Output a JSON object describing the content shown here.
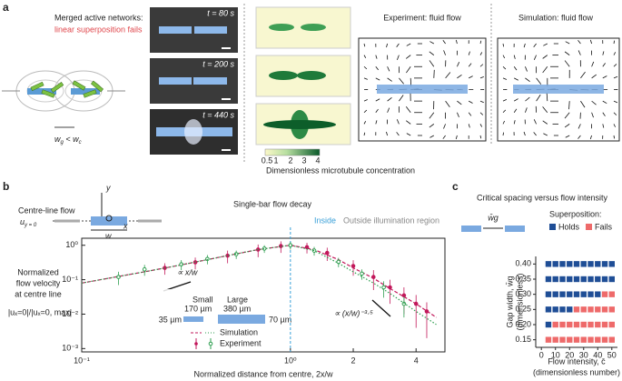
{
  "panel_a": {
    "letter": "a",
    "heading": "Merged active networks:",
    "subheading": "linear superposition fails",
    "gap_label": [
      "w",
      "g",
      " < ",
      "w",
      "c"
    ],
    "times": [
      "t = 80 s",
      "t = 200 s",
      "t = 440 s"
    ],
    "colorbar_ticks": [
      "0.5",
      "1",
      "2",
      "3",
      "4"
    ],
    "colorbar_label": "Dimensionless microtubule concentration",
    "experiment_title": "Experiment: fluid flow",
    "simulation_title": "Simulation: fluid flow"
  },
  "panel_b": {
    "letter": "b",
    "schematic": {
      "title": "Centre-line flow",
      "u": "u",
      "u_sub": "y = 0",
      "y": "y",
      "x": "x",
      "w": "w"
    },
    "inside": "Inside",
    "outside": "Outside illumination region",
    "ylabel": [
      "Normalized",
      "flow velocity",
      "at centre line"
    ],
    "ylabel_formula": "|uₓ=0|/|uₓ=0, max|",
    "slope_small": "∝ x/w",
    "slope_large": "∝ (x/w)⁻³·⁵",
    "legend": {
      "small": "Small",
      "large": "Large",
      "small_len": "170 µm",
      "small_wid": "35 µm",
      "large_len": "380 µm",
      "large_wid": "70 µm",
      "simulation": "Simulation",
      "experiment": "Experiment"
    }
  },
  "panel_c": {
    "letter": "c",
    "schematic_label": "w̄g",
    "superposition": "Superposition:",
    "ylabel": [
      "Gap width, w̄g",
      "(dimensionless)"
    ],
    "xlabel": [
      "Flow intensity, c̄",
      "(dimensionless number)"
    ]
  },
  "chart_data": [
    {
      "type": "line",
      "title": "Single-bar flow decay",
      "xlabel": "Normalized distance from centre, 2x/w",
      "xlog": true,
      "ylog": true,
      "xlim": [
        0.1,
        5.5
      ],
      "ylim": [
        0.0008,
        1.6
      ],
      "xticks": [
        {
          "value": 0.1,
          "label": "10⁻¹"
        },
        {
          "value": 1,
          "label": "10⁰"
        },
        2,
        4
      ],
      "yticks": [
        {
          "value": 1,
          "label": "10⁰"
        },
        {
          "value": 0.1,
          "label": "10⁻¹"
        },
        {
          "value": 0.01,
          "label": "10⁻²"
        },
        {
          "value": 0.001,
          "label": "10⁻³"
        }
      ],
      "series": [
        {
          "name": "Small",
          "color": "#c2185b",
          "simulation": {
            "x": [
              0.1,
              0.2,
              0.3,
              0.5,
              0.7,
              1,
              1.3,
              1.7,
              2,
              2.5,
              3,
              4,
              5
            ],
            "values": [
              0.08,
              0.17,
              0.27,
              0.5,
              0.75,
              1,
              0.75,
              0.38,
              0.22,
              0.11,
              0.055,
              0.02,
              0.008
            ]
          },
          "experiment": {
            "x": [
              0.25,
              0.35,
              0.5,
              0.7,
              0.9,
              1.2,
              1.5,
              2,
              2.5,
              3,
              3.5,
              4,
              4.5
            ],
            "values": [
              0.22,
              0.32,
              0.5,
              0.75,
              0.95,
              0.88,
              0.6,
              0.25,
              0.12,
              0.06,
              0.035,
              0.02,
              0.012
            ],
            "errors": [
              0.08,
              0.12,
              0.2,
              0.3,
              0.35,
              0.3,
              0.25,
              0.12,
              0.07,
              0.04,
              0.025,
              0.016,
              0.01
            ]
          }
        },
        {
          "name": "Large",
          "color": "#2e9e4f",
          "simulation": {
            "x": [
              0.1,
              0.2,
              0.3,
              0.5,
              0.7,
              1,
              1.3,
              1.7,
              2,
              2.5,
              3,
              4,
              5
            ],
            "values": [
              0.08,
              0.17,
              0.27,
              0.5,
              0.75,
              1,
              0.7,
              0.3,
              0.17,
              0.08,
              0.04,
              0.012,
              0.005
            ]
          },
          "experiment": {
            "x": [
              0.15,
              0.2,
              0.3,
              0.4,
              0.55,
              0.75,
              1,
              1.3,
              1.7,
              2.2,
              2.8,
              3.5
            ],
            "values": [
              0.12,
              0.2,
              0.28,
              0.4,
              0.55,
              0.8,
              1,
              0.7,
              0.33,
              0.15,
              0.06,
              0.02
            ],
            "errors": [
              0.05,
              0.07,
              0.09,
              0.12,
              0.15,
              0.2,
              0.25,
              0.2,
              0.1,
              0.05,
              0.03,
              0.012
            ]
          }
        }
      ]
    },
    {
      "type": "scatter",
      "title": "Critical spacing versus flow intensity",
      "xlim": [
        -4,
        54
      ],
      "ylim": [
        0.125,
        0.425
      ],
      "xticks": [
        0,
        10,
        20,
        30,
        40,
        50
      ],
      "yticks": [
        0.15,
        {
          "value": 0.2,
          "label": "0.20"
        },
        0.25,
        {
          "value": 0.3,
          "label": "0.30"
        },
        0.35,
        {
          "value": 0.4,
          "label": "0.40"
        }
      ],
      "series": [
        {
          "name": "Holds",
          "color": "#1f4e96",
          "x": [
            5,
            10,
            15,
            20,
            25,
            30,
            35,
            40,
            45,
            50,
            5,
            10,
            15,
            20,
            25,
            30,
            35,
            40,
            45,
            50,
            5,
            10,
            15,
            20,
            25,
            30,
            35,
            40,
            5,
            10,
            15,
            20,
            5
          ],
          "values": [
            0.4,
            0.4,
            0.4,
            0.4,
            0.4,
            0.4,
            0.4,
            0.4,
            0.4,
            0.4,
            0.35,
            0.35,
            0.35,
            0.35,
            0.35,
            0.35,
            0.35,
            0.35,
            0.35,
            0.35,
            0.3,
            0.3,
            0.3,
            0.3,
            0.3,
            0.3,
            0.3,
            0.3,
            0.25,
            0.25,
            0.25,
            0.25,
            0.2
          ]
        },
        {
          "name": "Fails",
          "color": "#ee6a6a",
          "x": [
            45,
            50,
            25,
            30,
            35,
            40,
            45,
            50,
            10,
            15,
            20,
            25,
            30,
            35,
            40,
            45,
            50,
            5,
            10,
            15,
            20,
            25,
            30,
            35,
            40,
            45,
            50
          ],
          "values": [
            0.3,
            0.3,
            0.25,
            0.25,
            0.25,
            0.25,
            0.25,
            0.25,
            0.2,
            0.2,
            0.2,
            0.2,
            0.2,
            0.2,
            0.2,
            0.2,
            0.2,
            0.15,
            0.15,
            0.15,
            0.15,
            0.15,
            0.15,
            0.15,
            0.15,
            0.15,
            0.15
          ]
        }
      ]
    }
  ]
}
